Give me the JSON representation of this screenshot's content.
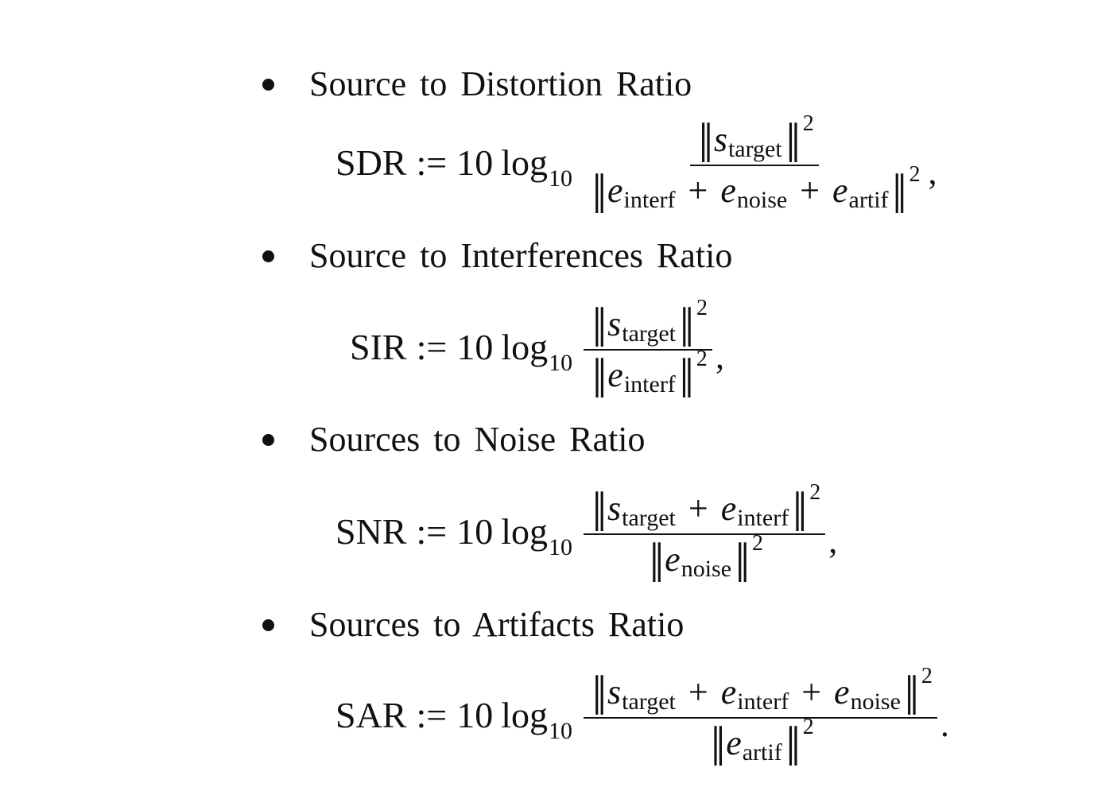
{
  "items": [
    {
      "title": "Source  to Distortion Ratio",
      "lhs": "SDR",
      "assign": ":=",
      "coef": "10",
      "log": "log",
      "log_base": "10",
      "numerator": [
        {
          "var": "s",
          "sub": "target"
        }
      ],
      "denominator": [
        {
          "var": "e",
          "sub": "interf"
        },
        {
          "var": "e",
          "sub": "noise"
        },
        {
          "var": "e",
          "sub": "artif"
        }
      ],
      "plus": "+",
      "exponent": "2",
      "trailing": ","
    },
    {
      "title": "Source to Interferences Ratio",
      "lhs": "SIR",
      "assign": ":=",
      "coef": "10",
      "log": "log",
      "log_base": "10",
      "numerator": [
        {
          "var": "s",
          "sub": "target"
        }
      ],
      "denominator": [
        {
          "var": "e",
          "sub": "interf"
        }
      ],
      "plus": "+",
      "exponent": "2",
      "trailing": ","
    },
    {
      "title": "Sources to Noise Ratio",
      "lhs": "SNR",
      "assign": ":=",
      "coef": "10",
      "log": "log",
      "log_base": "10",
      "numerator": [
        {
          "var": "s",
          "sub": "target"
        },
        {
          "var": "e",
          "sub": "interf"
        }
      ],
      "denominator": [
        {
          "var": "e",
          "sub": "noise"
        }
      ],
      "plus": "+",
      "exponent": "2",
      "trailing": ","
    },
    {
      "title": "Sources to Artifacts Ratio",
      "lhs": "SAR",
      "assign": ":=",
      "coef": "10",
      "log": "log",
      "log_base": "10",
      "numerator": [
        {
          "var": "s",
          "sub": "target"
        },
        {
          "var": "e",
          "sub": "interf"
        },
        {
          "var": "e",
          "sub": "noise"
        }
      ],
      "denominator": [
        {
          "var": "e",
          "sub": "artif"
        }
      ],
      "plus": "+",
      "exponent": "2",
      "trailing": "."
    }
  ],
  "norm_symbol": "‖"
}
